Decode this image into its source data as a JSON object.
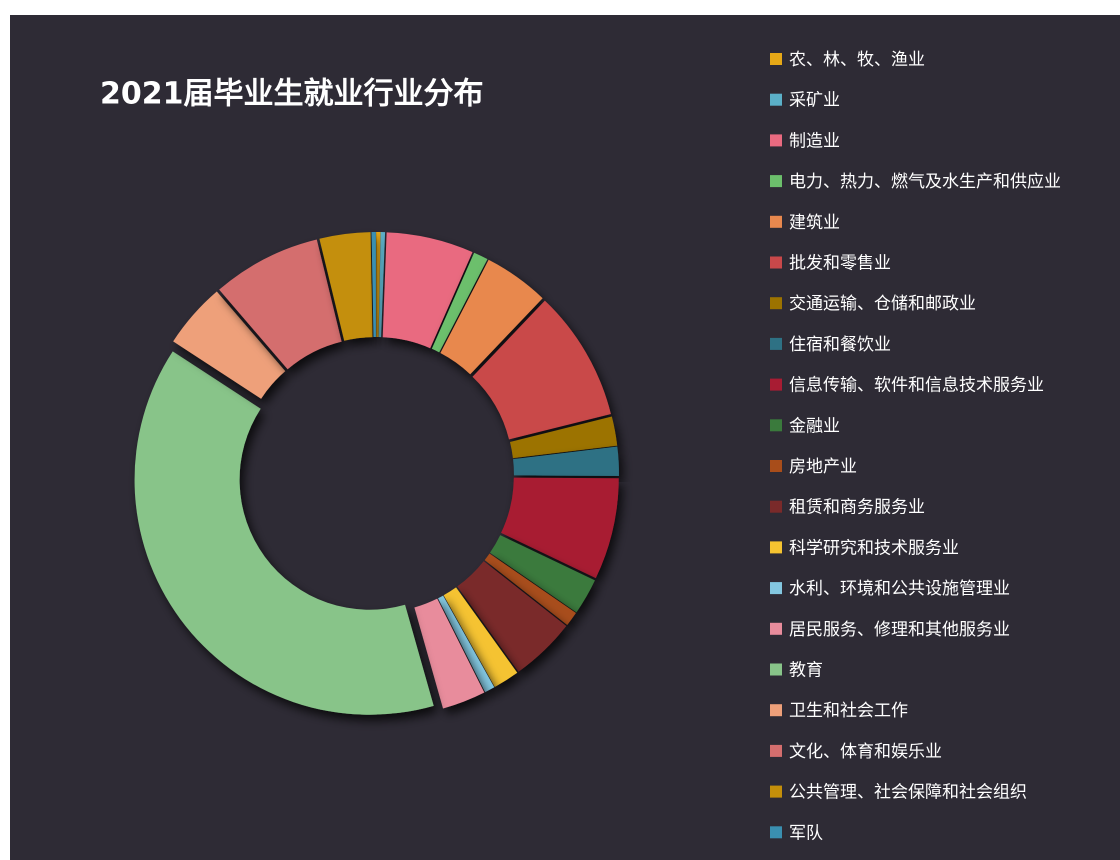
{
  "chart_data": {
    "type": "donut",
    "title": "2021届毕业生就业行业分布",
    "categories": [
      "农、林、牧、渔业",
      "采矿业",
      "制造业",
      "电力、热力、燃气及水生产和供应业",
      "建筑业",
      "批发和零售业",
      "交通运输、仓储和邮政业",
      "住宿和餐饮业",
      "信息传输、软件和信息技术服务业",
      "金融业",
      "房地产业",
      "租赁和商务服务业",
      "科学研究和技术服务业",
      "水利、环境和公共设施管理业",
      "居民服务、修理和其他服务业",
      "教育",
      "卫生和社会工作",
      "文化、体育和娱乐业",
      "公共管理、社会保障和社会组织",
      "军队"
    ],
    "values": [
      0.3,
      0.3,
      6,
      1,
      4.5,
      9,
      2,
      2,
      7,
      2.5,
      1,
      4.5,
      1.8,
      0.7,
      3,
      38.6,
      4.5,
      7.5,
      3.5,
      0.3
    ],
    "colors": [
      "#e6a817",
      "#5bb0c8",
      "#e96a80",
      "#6cbf6c",
      "#e8884e",
      "#c9484a",
      "#9c7300",
      "#2e7184",
      "#a81c33",
      "#3a7a3c",
      "#a84d1a",
      "#7a2a2a",
      "#f5c330",
      "#83c7e0",
      "#e88c9c",
      "#88c489",
      "#eea07a",
      "#d46e6e",
      "#c48f0a",
      "#3a8fb0"
    ],
    "legend": "right"
  }
}
